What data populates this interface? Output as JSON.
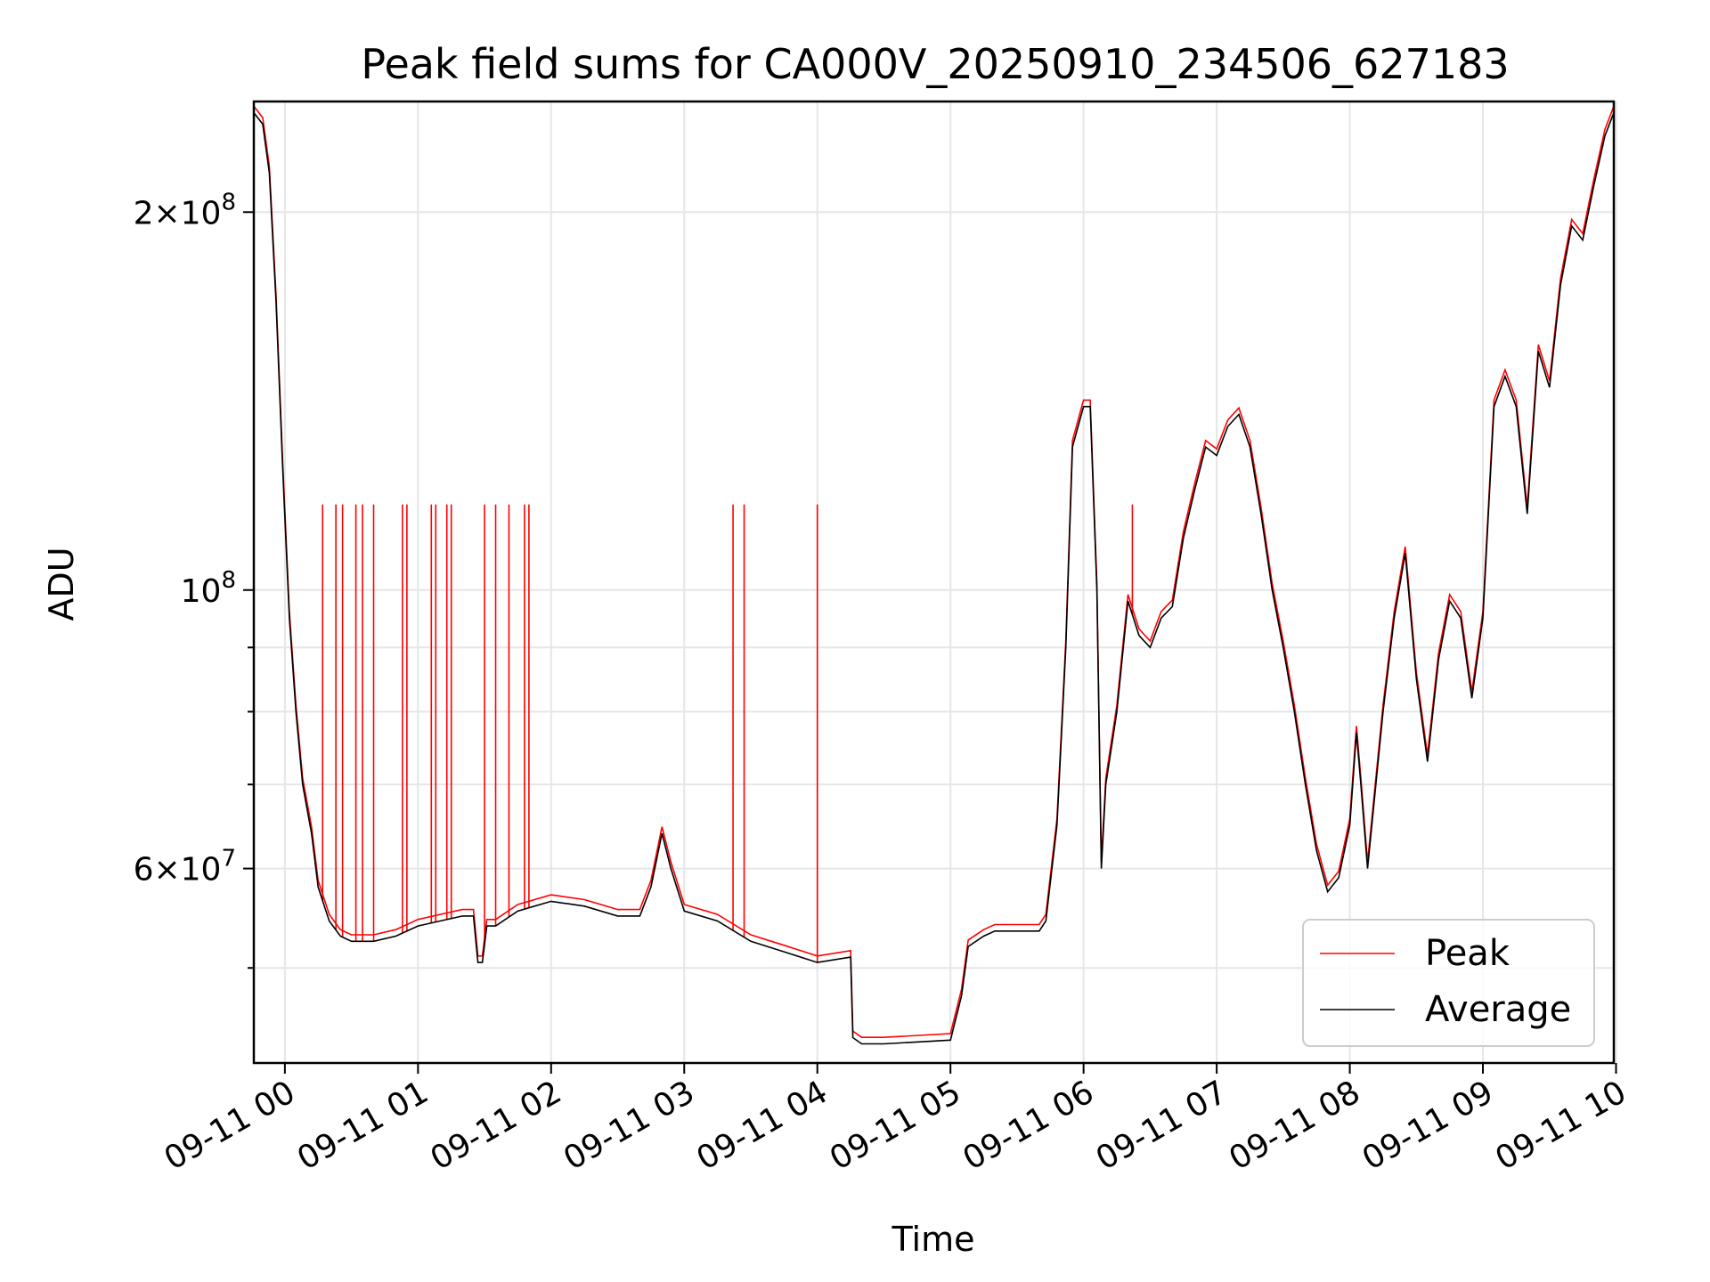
{
  "chart_data": {
    "type": "line",
    "title": "Peak field sums for CA000V_20250910_234506_627183",
    "xlabel": "Time",
    "ylabel": "ADU",
    "y_scale": "log",
    "ylim": [
      42000000,
      245000000
    ],
    "xlim": [
      "2025-09-10 23:46",
      "2025-09-11 09:59"
    ],
    "grid": true,
    "legend_position": "lower-right",
    "x_ticks": [
      "09-11 00",
      "09-11 01",
      "09-11 02",
      "09-11 03",
      "09-11 04",
      "09-11 05",
      "09-11 06",
      "09-11 07",
      "09-11 08",
      "09-11 09",
      "09-11 10"
    ],
    "y_ticks": [
      {
        "value": 200000000,
        "mantissa": "2",
        "exponent": "8"
      },
      {
        "value": 100000000,
        "mantissa": "",
        "exponent": "8"
      },
      {
        "value": 60000000,
        "mantissa": "6",
        "exponent": "7"
      }
    ],
    "series": [
      {
        "name": "Average",
        "color": "#000000",
        "x": [
          "2025-09-10 23:46",
          "2025-09-10 23:50",
          "2025-09-10 23:53",
          "2025-09-10 23:56",
          "2025-09-10 23:59",
          "2025-09-11 00:02",
          "2025-09-11 00:05",
          "2025-09-11 00:08",
          "2025-09-11 00:12",
          "2025-09-11 00:15",
          "2025-09-11 00:20",
          "2025-09-11 00:25",
          "2025-09-11 00:30",
          "2025-09-11 00:40",
          "2025-09-11 00:50",
          "2025-09-11 01:00",
          "2025-09-11 01:10",
          "2025-09-11 01:20",
          "2025-09-11 01:25",
          "2025-09-11 01:27",
          "2025-09-11 01:29",
          "2025-09-11 01:31",
          "2025-09-11 01:35",
          "2025-09-11 01:45",
          "2025-09-11 02:00",
          "2025-09-11 02:15",
          "2025-09-11 02:30",
          "2025-09-11 02:40",
          "2025-09-11 02:45",
          "2025-09-11 02:50",
          "2025-09-11 02:54",
          "2025-09-11 03:00",
          "2025-09-11 03:15",
          "2025-09-11 03:30",
          "2025-09-11 03:45",
          "2025-09-11 04:00",
          "2025-09-11 04:15",
          "2025-09-11 04:16",
          "2025-09-11 04:20",
          "2025-09-11 04:30",
          "2025-09-11 05:00",
          "2025-09-11 05:05",
          "2025-09-11 05:08",
          "2025-09-11 05:15",
          "2025-09-11 05:20",
          "2025-09-11 05:30",
          "2025-09-11 05:40",
          "2025-09-11 05:43",
          "2025-09-11 05:48",
          "2025-09-11 05:52",
          "2025-09-11 05:55",
          "2025-09-11 06:00",
          "2025-09-11 06:03",
          "2025-09-11 06:06",
          "2025-09-11 06:08",
          "2025-09-11 06:10",
          "2025-09-11 06:15",
          "2025-09-11 06:20",
          "2025-09-11 06:25",
          "2025-09-11 06:30",
          "2025-09-11 06:35",
          "2025-09-11 06:40",
          "2025-09-11 06:45",
          "2025-09-11 06:50",
          "2025-09-11 06:55",
          "2025-09-11 07:00",
          "2025-09-11 07:05",
          "2025-09-11 07:10",
          "2025-09-11 07:15",
          "2025-09-11 07:20",
          "2025-09-11 07:25",
          "2025-09-11 07:30",
          "2025-09-11 07:35",
          "2025-09-11 07:40",
          "2025-09-11 07:45",
          "2025-09-11 07:50",
          "2025-09-11 07:55",
          "2025-09-11 08:00",
          "2025-09-11 08:03",
          "2025-09-11 08:05",
          "2025-09-11 08:08",
          "2025-09-11 08:15",
          "2025-09-11 08:20",
          "2025-09-11 08:25",
          "2025-09-11 08:30",
          "2025-09-11 08:35",
          "2025-09-11 08:40",
          "2025-09-11 08:45",
          "2025-09-11 08:50",
          "2025-09-11 08:55",
          "2025-09-11 09:00",
          "2025-09-11 09:05",
          "2025-09-11 09:10",
          "2025-09-11 09:15",
          "2025-09-11 09:20",
          "2025-09-11 09:25",
          "2025-09-11 09:30",
          "2025-09-11 09:35",
          "2025-09-11 09:40",
          "2025-09-11 09:45",
          "2025-09-11 09:50",
          "2025-09-11 09:55",
          "2025-09-11 09:59"
        ],
        "values": [
          240000000,
          235000000,
          215000000,
          170000000,
          125000000,
          95000000,
          80000000,
          70000000,
          64000000,
          58000000,
          54500000,
          53000000,
          52500000,
          52500000,
          53000000,
          54000000,
          54500000,
          55000000,
          55000000,
          50500000,
          50500000,
          54000000,
          54000000,
          55500000,
          56500000,
          56000000,
          55000000,
          55000000,
          58000000,
          64000000,
          60000000,
          55500000,
          54500000,
          52500000,
          51500000,
          50500000,
          51000000,
          44000000,
          43500000,
          43500000,
          43800000,
          47500000,
          52000000,
          53000000,
          53500000,
          53500000,
          53500000,
          54500000,
          65000000,
          90000000,
          130000000,
          140000000,
          140000000,
          100000000,
          60000000,
          70000000,
          80000000,
          98000000,
          92000000,
          90000000,
          95000000,
          97000000,
          110000000,
          120000000,
          130000000,
          128000000,
          135000000,
          138000000,
          130000000,
          115000000,
          100000000,
          90000000,
          80000000,
          70000000,
          62000000,
          57500000,
          59000000,
          65000000,
          77000000,
          70000000,
          60000000,
          80000000,
          95000000,
          107000000,
          85000000,
          73000000,
          88000000,
          98000000,
          95000000,
          82000000,
          95000000,
          140000000,
          148000000,
          140000000,
          115000000,
          155000000,
          145000000,
          175000000,
          195000000,
          190000000,
          210000000,
          230000000,
          240000000
        ]
      },
      {
        "name": "Peak",
        "color": "#ff0000",
        "spike_value": 117000000,
        "spike_times": [
          "2025-09-11 00:17",
          "2025-09-11 00:23",
          "2025-09-11 00:26",
          "2025-09-11 00:32",
          "2025-09-11 00:35",
          "2025-09-11 00:40",
          "2025-09-11 00:53",
          "2025-09-11 00:55",
          "2025-09-11 01:06",
          "2025-09-11 01:08",
          "2025-09-11 01:13",
          "2025-09-11 01:15",
          "2025-09-11 01:30",
          "2025-09-11 01:35",
          "2025-09-11 01:41",
          "2025-09-11 01:48",
          "2025-09-11 01:50",
          "2025-09-11 03:22",
          "2025-09-11 03:27",
          "2025-09-11 04:00",
          "2025-09-11 06:22"
        ]
      }
    ]
  }
}
